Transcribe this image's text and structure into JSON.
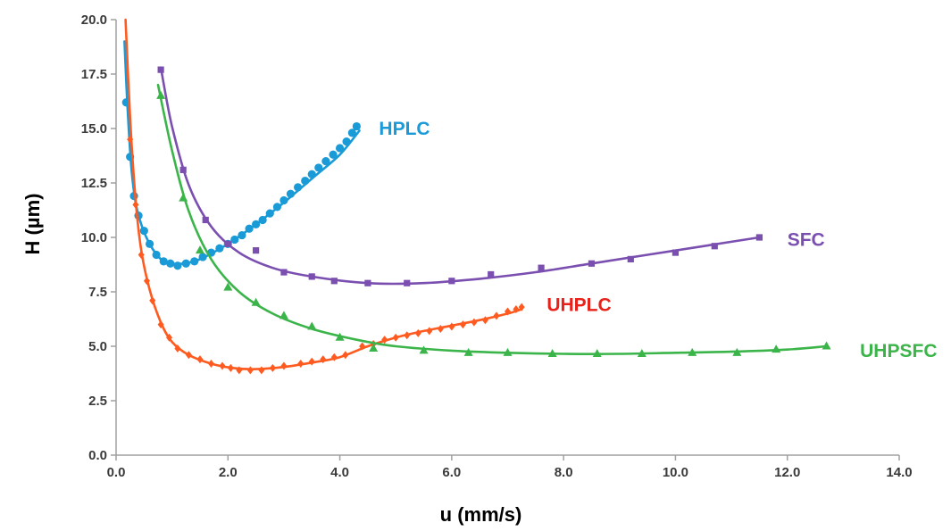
{
  "chart_data": {
    "type": "scatter",
    "xlabel": "u (mm/s)",
    "ylabel": "H (µm)",
    "xlim": [
      0,
      14
    ],
    "ylim": [
      0,
      20
    ],
    "xticks": [
      "0.0",
      "2.0",
      "4.0",
      "6.0",
      "8.0",
      "10.0",
      "12.0",
      "14.0"
    ],
    "yticks": [
      "0.0",
      "2.5",
      "5.0",
      "7.5",
      "10.0",
      "12.5",
      "15.0",
      "17.5",
      "20.0"
    ],
    "grid": false,
    "series": [
      {
        "name": "HPLC",
        "color": "#1a9ad6",
        "marker": "circle",
        "points": [
          [
            0.18,
            16.2
          ],
          [
            0.25,
            13.7
          ],
          [
            0.32,
            11.9
          ],
          [
            0.4,
            11.0
          ],
          [
            0.5,
            10.3
          ],
          [
            0.6,
            9.7
          ],
          [
            0.72,
            9.2
          ],
          [
            0.85,
            8.9
          ],
          [
            0.97,
            8.8
          ],
          [
            1.1,
            8.7
          ],
          [
            1.25,
            8.8
          ],
          [
            1.4,
            8.9
          ],
          [
            1.55,
            9.1
          ],
          [
            1.7,
            9.3
          ],
          [
            1.85,
            9.5
          ],
          [
            2.0,
            9.7
          ],
          [
            2.12,
            9.9
          ],
          [
            2.25,
            10.1
          ],
          [
            2.38,
            10.4
          ],
          [
            2.5,
            10.6
          ],
          [
            2.62,
            10.8
          ],
          [
            2.75,
            11.1
          ],
          [
            2.88,
            11.4
          ],
          [
            3.0,
            11.7
          ],
          [
            3.12,
            12.0
          ],
          [
            3.25,
            12.3
          ],
          [
            3.38,
            12.6
          ],
          [
            3.5,
            12.9
          ],
          [
            3.62,
            13.2
          ],
          [
            3.75,
            13.5
          ],
          [
            3.88,
            13.8
          ],
          [
            4.0,
            14.1
          ],
          [
            4.12,
            14.4
          ],
          [
            4.22,
            14.8
          ],
          [
            4.3,
            15.1
          ]
        ],
        "curve": [
          [
            0.15,
            19.0
          ],
          [
            0.2,
            16.2
          ],
          [
            0.27,
            13.3
          ],
          [
            0.35,
            11.6
          ],
          [
            0.45,
            10.6
          ],
          [
            0.6,
            9.7
          ],
          [
            0.8,
            9.0
          ],
          [
            1.0,
            8.8
          ],
          [
            1.2,
            8.8
          ],
          [
            1.5,
            9.0
          ],
          [
            2.0,
            9.7
          ],
          [
            2.5,
            10.6
          ],
          [
            3.0,
            11.6
          ],
          [
            3.5,
            12.7
          ],
          [
            4.0,
            13.8
          ],
          [
            4.35,
            14.9
          ]
        ]
      },
      {
        "name": "SFC",
        "color": "#7a4fb0",
        "marker": "square",
        "points": [
          [
            0.8,
            17.7
          ],
          [
            1.2,
            13.1
          ],
          [
            1.6,
            10.8
          ],
          [
            2.0,
            9.7
          ],
          [
            2.5,
            9.4
          ],
          [
            3.0,
            8.4
          ],
          [
            3.5,
            8.2
          ],
          [
            3.9,
            8.0
          ],
          [
            4.5,
            7.9
          ],
          [
            5.2,
            7.9
          ],
          [
            6.0,
            8.0
          ],
          [
            6.7,
            8.3
          ],
          [
            7.6,
            8.6
          ],
          [
            8.5,
            8.8
          ],
          [
            9.2,
            9.0
          ],
          [
            10.0,
            9.3
          ],
          [
            10.7,
            9.6
          ],
          [
            11.5,
            10.0
          ]
        ],
        "curve": [
          [
            0.8,
            17.8
          ],
          [
            1.0,
            15.1
          ],
          [
            1.3,
            12.4
          ],
          [
            1.7,
            10.5
          ],
          [
            2.2,
            9.3
          ],
          [
            2.8,
            8.6
          ],
          [
            3.5,
            8.2
          ],
          [
            4.5,
            7.9
          ],
          [
            5.5,
            7.9
          ],
          [
            6.5,
            8.1
          ],
          [
            7.5,
            8.4
          ],
          [
            8.5,
            8.8
          ],
          [
            9.5,
            9.2
          ],
          [
            10.5,
            9.6
          ],
          [
            11.5,
            10.0
          ]
        ]
      },
      {
        "name": "UHPLC",
        "color": "#ff5a1f",
        "marker": "diamond",
        "points": [
          [
            0.25,
            14.5
          ],
          [
            0.35,
            11.5
          ],
          [
            0.45,
            9.2
          ],
          [
            0.55,
            8.0
          ],
          [
            0.65,
            7.1
          ],
          [
            0.8,
            6.0
          ],
          [
            0.95,
            5.4
          ],
          [
            1.1,
            4.9
          ],
          [
            1.3,
            4.6
          ],
          [
            1.5,
            4.4
          ],
          [
            1.7,
            4.2
          ],
          [
            1.9,
            4.1
          ],
          [
            2.05,
            4.0
          ],
          [
            2.2,
            3.9
          ],
          [
            2.4,
            3.9
          ],
          [
            2.6,
            3.9
          ],
          [
            2.8,
            4.0
          ],
          [
            3.0,
            4.1
          ],
          [
            3.3,
            4.2
          ],
          [
            3.5,
            4.3
          ],
          [
            3.7,
            4.4
          ],
          [
            3.9,
            4.5
          ],
          [
            4.1,
            4.6
          ],
          [
            4.4,
            5.0
          ],
          [
            4.6,
            5.1
          ],
          [
            4.8,
            5.3
          ],
          [
            5.0,
            5.4
          ],
          [
            5.2,
            5.5
          ],
          [
            5.4,
            5.6
          ],
          [
            5.6,
            5.7
          ],
          [
            5.8,
            5.8
          ],
          [
            6.0,
            5.9
          ],
          [
            6.2,
            6.0
          ],
          [
            6.4,
            6.1
          ],
          [
            6.6,
            6.2
          ],
          [
            6.8,
            6.4
          ],
          [
            7.0,
            6.6
          ],
          [
            7.15,
            6.7
          ],
          [
            7.25,
            6.8
          ]
        ],
        "curve": [
          [
            0.17,
            20.0
          ],
          [
            0.25,
            15.5
          ],
          [
            0.35,
            11.7
          ],
          [
            0.45,
            9.4
          ],
          [
            0.6,
            7.6
          ],
          [
            0.8,
            6.1
          ],
          [
            1.0,
            5.2
          ],
          [
            1.3,
            4.6
          ],
          [
            1.7,
            4.2
          ],
          [
            2.1,
            4.0
          ],
          [
            2.5,
            3.95
          ],
          [
            3.0,
            4.05
          ],
          [
            3.5,
            4.25
          ],
          [
            4.0,
            4.5
          ],
          [
            4.5,
            5.0
          ],
          [
            5.0,
            5.4
          ],
          [
            5.5,
            5.7
          ],
          [
            6.0,
            5.95
          ],
          [
            6.5,
            6.2
          ],
          [
            7.0,
            6.5
          ],
          [
            7.25,
            6.7
          ]
        ]
      },
      {
        "name": "UHPSFC",
        "color": "#3bb54a",
        "marker": "triangle",
        "points": [
          [
            0.8,
            16.5
          ],
          [
            1.2,
            11.8
          ],
          [
            1.5,
            9.4
          ],
          [
            2.0,
            7.7
          ],
          [
            2.5,
            7.0
          ],
          [
            3.0,
            6.4
          ],
          [
            3.5,
            5.9
          ],
          [
            4.0,
            5.4
          ],
          [
            4.6,
            4.9
          ],
          [
            5.5,
            4.8
          ],
          [
            6.3,
            4.7
          ],
          [
            7.0,
            4.7
          ],
          [
            7.8,
            4.65
          ],
          [
            8.6,
            4.65
          ],
          [
            9.4,
            4.65
          ],
          [
            10.3,
            4.7
          ],
          [
            11.1,
            4.7
          ],
          [
            11.8,
            4.85
          ],
          [
            12.7,
            5.0
          ]
        ],
        "curve": [
          [
            0.75,
            17.0
          ],
          [
            1.0,
            14.0
          ],
          [
            1.3,
            11.2
          ],
          [
            1.7,
            9.0
          ],
          [
            2.2,
            7.5
          ],
          [
            2.8,
            6.5
          ],
          [
            3.5,
            5.8
          ],
          [
            4.3,
            5.3
          ],
          [
            5.0,
            5.0
          ],
          [
            6.0,
            4.8
          ],
          [
            7.0,
            4.7
          ],
          [
            8.0,
            4.65
          ],
          [
            9.0,
            4.65
          ],
          [
            10.0,
            4.7
          ],
          [
            11.0,
            4.75
          ],
          [
            12.0,
            4.85
          ],
          [
            12.7,
            5.0
          ]
        ]
      }
    ]
  }
}
